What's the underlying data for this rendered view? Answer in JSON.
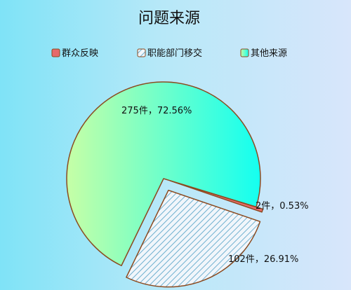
{
  "chart_data": {
    "type": "pie",
    "title": "问题来源",
    "series": [
      {
        "name": "群众反映",
        "value": 2,
        "percent": "0.53%",
        "label": "2件，0.53%",
        "color": "#e66a6a",
        "fill": "solid"
      },
      {
        "name": "职能部门移交",
        "value": 102,
        "percent": "26.91%",
        "label": "102件，26.91%",
        "color": "#8fc7e6",
        "fill": "hatch"
      },
      {
        "name": "其他来源",
        "value": 275,
        "percent": "72.56%",
        "label": "275件，72.56%",
        "color": "#1ffff0",
        "fill": "gradient"
      }
    ],
    "legend_position": "top-center",
    "border_color": "#8b4a1f"
  }
}
